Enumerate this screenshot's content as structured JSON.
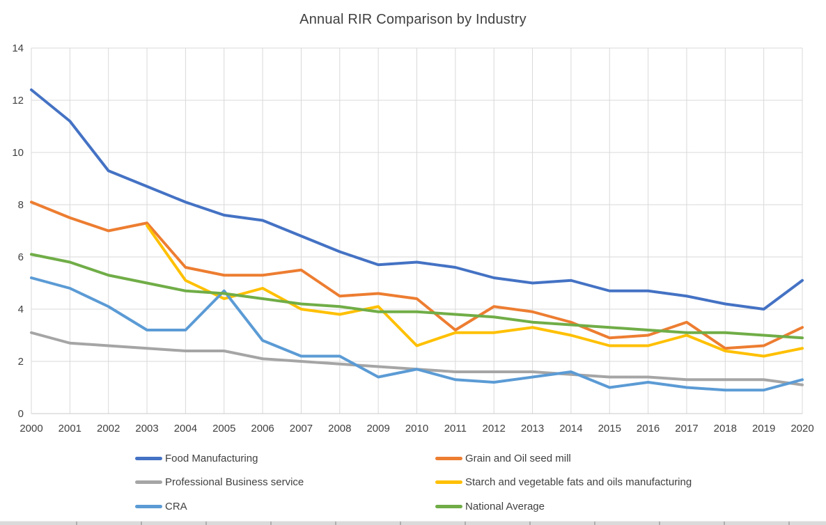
{
  "title": "Annual RIR Comparison by Industry",
  "chart_data": {
    "type": "line",
    "x": [
      2000,
      2001,
      2002,
      2003,
      2004,
      2005,
      2006,
      2007,
      2008,
      2009,
      2010,
      2011,
      2012,
      2013,
      2014,
      2015,
      2016,
      2017,
      2018,
      2019,
      2020
    ],
    "series": [
      {
        "name": "Food Manufacturing",
        "color": "#4472C4",
        "values": [
          12.4,
          11.2,
          9.3,
          8.7,
          8.1,
          7.6,
          7.4,
          6.8,
          6.2,
          5.7,
          5.8,
          5.6,
          5.2,
          5.0,
          5.1,
          4.7,
          4.7,
          4.5,
          4.2,
          4.0,
          5.1
        ]
      },
      {
        "name": "Grain and Oil seed mill",
        "color": "#ED7D31",
        "values": [
          8.1,
          7.5,
          7.0,
          7.3,
          5.6,
          5.3,
          5.3,
          5.5,
          4.5,
          4.6,
          4.4,
          3.2,
          4.1,
          3.9,
          3.5,
          2.9,
          3.0,
          3.5,
          2.5,
          2.6,
          3.3
        ]
      },
      {
        "name": "Professional Business service",
        "color": "#A5A5A5",
        "values": [
          3.1,
          2.7,
          2.6,
          2.5,
          2.4,
          2.4,
          2.1,
          2.0,
          1.9,
          1.8,
          1.7,
          1.6,
          1.6,
          1.6,
          1.5,
          1.4,
          1.4,
          1.3,
          1.3,
          1.3,
          1.1
        ]
      },
      {
        "name": "Starch and vegetable fats and oils manufacturing",
        "color": "#FFC000",
        "values": [
          null,
          null,
          null,
          7.2,
          5.1,
          4.4,
          4.8,
          4.0,
          3.8,
          4.1,
          2.6,
          3.1,
          3.1,
          3.3,
          3.0,
          2.6,
          2.6,
          3.0,
          2.4,
          2.2,
          2.5
        ]
      },
      {
        "name": "CRA",
        "color": "#5B9BD5",
        "values": [
          5.2,
          4.8,
          4.1,
          3.2,
          3.2,
          4.7,
          2.8,
          2.2,
          2.2,
          1.4,
          1.7,
          1.3,
          1.2,
          1.4,
          1.6,
          1.0,
          1.2,
          1.0,
          0.9,
          0.9,
          1.3
        ]
      },
      {
        "name": "National Average",
        "color": "#70AD47",
        "values": [
          6.1,
          5.8,
          5.3,
          5.0,
          4.7,
          4.6,
          4.4,
          4.2,
          4.1,
          3.9,
          3.9,
          3.8,
          3.7,
          3.5,
          3.4,
          3.3,
          3.2,
          3.1,
          3.1,
          3.0,
          2.9
        ]
      }
    ],
    "title": "Annual RIR Comparison by Industry",
    "xlabel": "",
    "ylabel": "",
    "ylim": [
      0,
      14
    ],
    "ytick_step": 2,
    "yticks": [
      0,
      2,
      4,
      6,
      8,
      10,
      12,
      14
    ],
    "grid": true,
    "legend_position": "bottom",
    "legend_columns": 2,
    "legend_rows": [
      [
        "Food Manufacturing",
        "Grain and Oil seed mill"
      ],
      [
        "Professional Business service",
        "Starch and vegetable fats and oils manufacturing"
      ],
      [
        "CRA",
        "National Average"
      ]
    ]
  },
  "style_colors": {
    "text": "#404040",
    "gridline": "#D9D9D9",
    "axis_line": "#C9C9C9"
  }
}
